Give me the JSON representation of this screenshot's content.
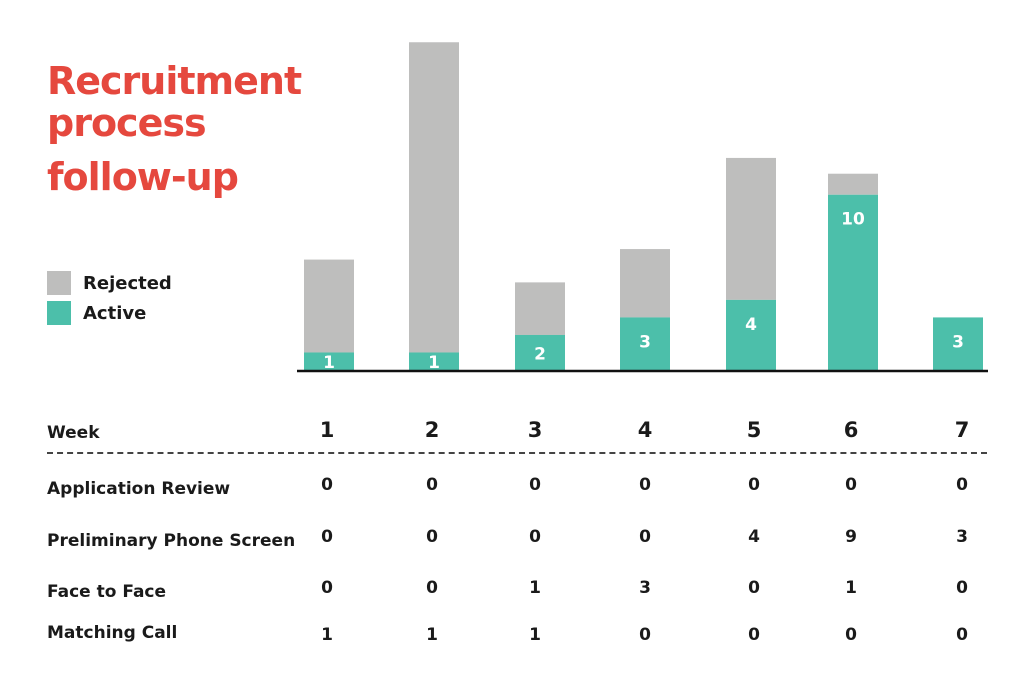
{
  "title_lines": [
    "Recruitment",
    "process",
    "follow-up"
  ],
  "colors": {
    "title": "#e5483e",
    "rejected": "#bebebd",
    "active": "#4cbfaa",
    "axis": "#111111"
  },
  "legend": [
    {
      "label": "Rejected",
      "color": "#bebebd"
    },
    {
      "label": "Active",
      "color": "#4cbfaa"
    }
  ],
  "chart_data": {
    "type": "bar",
    "stacked": true,
    "categories": [
      "1",
      "2",
      "3",
      "4",
      "5",
      "6",
      "7"
    ],
    "series": [
      {
        "name": "Active",
        "values": [
          1,
          1,
          2,
          3,
          4,
          10,
          3
        ]
      },
      {
        "name": "Rejected",
        "values": [
          5.3,
          17.7,
          3.0,
          3.9,
          8.1,
          1.2,
          0
        ]
      }
    ],
    "data_labels": [
      "1",
      "1",
      "2",
      "3",
      "4",
      "10",
      "3"
    ],
    "ylim": [
      0,
      19
    ],
    "legend_position": "left",
    "grid": false
  },
  "table": {
    "header_label": "Week",
    "weeks": [
      "1",
      "2",
      "3",
      "4",
      "5",
      "6",
      "7"
    ],
    "rows": [
      {
        "label": "Application Review",
        "values": [
          "0",
          "0",
          "0",
          "0",
          "0",
          "0",
          "0"
        ]
      },
      {
        "label": "Preliminary Phone Screen",
        "values": [
          "0",
          "0",
          "0",
          "0",
          "4",
          "9",
          "3"
        ]
      },
      {
        "label": "Face to Face",
        "values": [
          "0",
          "0",
          "1",
          "3",
          "0",
          "1",
          "0"
        ]
      },
      {
        "label": "Matching Call",
        "values": [
          "1",
          "1",
          "1",
          "0",
          "0",
          "0",
          "0"
        ]
      }
    ]
  }
}
